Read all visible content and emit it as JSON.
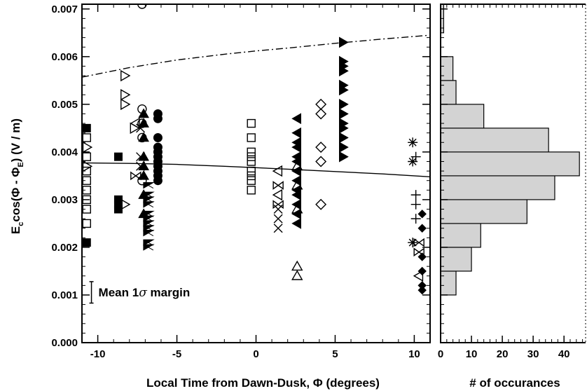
{
  "chart_data": [
    {
      "type": "scatter",
      "xlabel": "Local Time from Dawn-Dusk, Φ (degrees)",
      "ylabel_parts": [
        "E",
        "c",
        "cos(Φ - Φ",
        "E",
        ") (V / m)"
      ],
      "xlim": [
        -11,
        11
      ],
      "ylim": [
        0,
        0.0071
      ],
      "x_ticks": [
        -10,
        -5,
        0,
        5,
        10
      ],
      "x_tick_labels": [
        "-10",
        "-5",
        "0",
        "5",
        "10"
      ],
      "y_ticks": [
        0,
        0.001,
        0.002,
        0.003,
        0.004,
        0.005,
        0.006,
        0.007
      ],
      "y_tick_labels": [
        "0.000",
        "0.001",
        "0.002",
        "0.003",
        "0.004",
        "0.005",
        "0.006",
        "0.007"
      ],
      "annotation": {
        "text_prefix": "Mean 1",
        "symbol": "σ",
        "text_suffix": " margin",
        "x": -10.4,
        "y_low": 0.00083,
        "y_high": 0.00128
      },
      "lines": [
        {
          "style": "solid",
          "x": [
            -11,
            -8,
            -5,
            -2,
            0,
            2,
            5,
            8,
            11
          ],
          "y": [
            0.00377,
            0.00376,
            0.00374,
            0.0037,
            0.00367,
            0.00364,
            0.00359,
            0.00354,
            0.00348
          ]
        },
        {
          "style": "dashdot",
          "x": [
            -11,
            -8,
            -5,
            -2,
            0,
            2,
            5,
            8,
            11
          ],
          "y": [
            0.00557,
            0.00577,
            0.00593,
            0.00605,
            0.00612,
            0.00618,
            0.00628,
            0.00637,
            0.00645
          ]
        }
      ],
      "series": [
        {
          "marker": "square-open",
          "points": [
            [
              -10.7,
              0.0043
            ],
            [
              -10.7,
              0.0039
            ],
            [
              -10.7,
              0.0036
            ],
            [
              -10.7,
              0.0034
            ],
            [
              -10.7,
              0.0032
            ],
            [
              -10.7,
              0.003
            ],
            [
              -10.7,
              0.0028
            ],
            [
              -10.7,
              0.0025
            ],
            [
              -0.3,
              0.0046
            ],
            [
              -0.3,
              0.0043
            ],
            [
              -0.3,
              0.004
            ],
            [
              -0.3,
              0.0039
            ],
            [
              -0.3,
              0.0038
            ],
            [
              -0.3,
              0.0036
            ],
            [
              -0.3,
              0.0035
            ],
            [
              -0.3,
              0.0034
            ],
            [
              -0.3,
              0.0032
            ]
          ]
        },
        {
          "marker": "square-filled",
          "points": [
            [
              -10.7,
              0.0045
            ],
            [
              -10.7,
              0.0021
            ],
            [
              -8.7,
              0.0039
            ],
            [
              -8.7,
              0.003
            ],
            [
              -8.7,
              0.0029
            ],
            [
              -8.7,
              0.0028
            ]
          ]
        },
        {
          "marker": "triangle-right-open",
          "points": [
            [
              -10.7,
              0.0041
            ],
            [
              -10.7,
              0.0037
            ],
            [
              -8.3,
              0.0056
            ],
            [
              -8.3,
              0.0052
            ],
            [
              -8.3,
              0.005
            ],
            [
              -8.3,
              0.0029
            ],
            [
              -7.7,
              0.0045
            ]
          ]
        },
        {
          "marker": "triangle-left-open",
          "points": [
            [
              -7.6,
              0.0046
            ],
            [
              1.4,
              0.0036
            ],
            [
              1.4,
              0.0031
            ],
            [
              10.3,
              0.0014
            ]
          ]
        },
        {
          "marker": "circle-open",
          "points": [
            [
              -7.2,
              0.0071
            ],
            [
              -7.2,
              0.0049
            ],
            [
              -7.2,
              0.0046
            ],
            [
              -7.2,
              0.0043
            ],
            [
              -7.2,
              0.0034
            ]
          ]
        },
        {
          "marker": "circle-filled",
          "points": [
            [
              -6.2,
              0.0048
            ],
            [
              -6.2,
              0.0047
            ],
            [
              -6.2,
              0.0043
            ],
            [
              -6.2,
              0.0041
            ],
            [
              -6.2,
              0.004
            ],
            [
              -6.2,
              0.0039
            ],
            [
              -6.2,
              0.0038
            ],
            [
              -6.2,
              0.0037
            ],
            [
              -6.2,
              0.0036
            ],
            [
              -6.2,
              0.0035
            ],
            [
              -6.2,
              0.0034
            ]
          ]
        },
        {
          "marker": "x",
          "points": [
            [
              -7.3,
              0.0045
            ],
            [
              -7.3,
              0.0039
            ],
            [
              -7.3,
              0.0037
            ],
            [
              1.4,
              0.0028
            ],
            [
              1.4,
              0.0026
            ],
            [
              1.4,
              0.0024
            ]
          ]
        },
        {
          "marker": "triangle-up-filled",
          "points": [
            [
              -7.1,
              0.0048
            ],
            [
              -7.1,
              0.0046
            ],
            [
              -7.1,
              0.0043
            ],
            [
              -7.1,
              0.0039
            ],
            [
              -7.1,
              0.0037
            ],
            [
              -7.1,
              0.0035
            ],
            [
              -7.1,
              0.0031
            ],
            [
              -7.1,
              0.0027
            ]
          ]
        },
        {
          "marker": "bowtie-filled",
          "points": [
            [
              -6.8,
              0.0033
            ],
            [
              -6.8,
              0.0031
            ],
            [
              -6.8,
              0.003
            ],
            [
              -6.8,
              0.0029
            ],
            [
              -6.8,
              0.0027
            ],
            [
              -6.8,
              0.0026
            ],
            [
              -6.8,
              0.0025
            ],
            [
              -6.8,
              0.0024
            ],
            [
              -6.8,
              0.0023
            ],
            [
              -6.8,
              0.0021
            ],
            [
              -6.8,
              0.002
            ]
          ]
        },
        {
          "marker": "triangle-left-filled",
          "points": [
            [
              2.6,
              0.0047
            ],
            [
              2.6,
              0.0044
            ],
            [
              2.6,
              0.0042
            ],
            [
              2.6,
              0.0041
            ],
            [
              2.6,
              0.0039
            ],
            [
              2.6,
              0.0038
            ],
            [
              2.6,
              0.0036
            ],
            [
              2.6,
              0.0034
            ],
            [
              2.6,
              0.0032
            ],
            [
              2.6,
              0.0031
            ],
            [
              2.6,
              0.0029
            ],
            [
              2.6,
              0.0027
            ],
            [
              2.6,
              0.0025
            ]
          ]
        },
        {
          "marker": "triangle-up-open",
          "points": [
            [
              2.6,
              0.0037
            ],
            [
              2.6,
              0.0033
            ],
            [
              2.6,
              0.0028
            ],
            [
              2.6,
              0.0016
            ],
            [
              2.6,
              0.0014
            ]
          ]
        },
        {
          "marker": "diamond-open",
          "points": [
            [
              4.1,
              0.005
            ],
            [
              4.1,
              0.0048
            ],
            [
              4.1,
              0.0041
            ],
            [
              4.1,
              0.0038
            ],
            [
              4.1,
              0.0029
            ]
          ]
        },
        {
          "marker": "triangle-right-filled",
          "points": [
            [
              5.5,
              0.0063
            ],
            [
              5.5,
              0.0059
            ],
            [
              5.5,
              0.0058
            ],
            [
              5.5,
              0.0057
            ],
            [
              5.5,
              0.0054
            ],
            [
              5.5,
              0.0053
            ],
            [
              5.5,
              0.005
            ],
            [
              5.5,
              0.0048
            ],
            [
              5.5,
              0.0046
            ],
            [
              5.5,
              0.0045
            ],
            [
              5.5,
              0.0043
            ],
            [
              5.5,
              0.0041
            ],
            [
              5.5,
              0.0039
            ]
          ]
        },
        {
          "marker": "asterisk",
          "points": [
            [
              9.9,
              0.0042
            ],
            [
              9.9,
              0.0038
            ],
            [
              9.9,
              0.0021
            ]
          ]
        },
        {
          "marker": "plus",
          "points": [
            [
              10.1,
              0.0039
            ],
            [
              10.1,
              0.0031
            ],
            [
              10.1,
              0.0029
            ],
            [
              10.1,
              0.0026
            ]
          ]
        },
        {
          "marker": "diamond-filled",
          "points": [
            [
              10.5,
              0.0027
            ],
            [
              10.5,
              0.0024
            ],
            [
              10.5,
              0.0018
            ],
            [
              10.5,
              0.0015
            ],
            [
              10.5,
              0.0012
            ],
            [
              10.5,
              0.0011
            ]
          ]
        },
        {
          "marker": "bowtie-open",
          "points": [
            [
              -7.6,
              0.0035
            ],
            [
              1.4,
              0.0033
            ],
            [
              1.4,
              0.0029
            ],
            [
              10.3,
              0.0021
            ],
            [
              10.3,
              0.0019
            ]
          ]
        }
      ]
    },
    {
      "type": "histogram",
      "orientation": "horizontal",
      "xlabel": "# of occurances",
      "xlim": [
        0,
        47
      ],
      "ylim": [
        0,
        0.0071
      ],
      "x_ticks": [
        0,
        10,
        20,
        30,
        40
      ],
      "x_tick_labels": [
        "0",
        "10",
        "20",
        "30",
        "40"
      ],
      "bar_color": "#d3d3d3",
      "bins": [
        {
          "y0": 0.001,
          "y1": 0.0015,
          "count": 5
        },
        {
          "y0": 0.0015,
          "y1": 0.002,
          "count": 10
        },
        {
          "y0": 0.002,
          "y1": 0.0025,
          "count": 13
        },
        {
          "y0": 0.0025,
          "y1": 0.003,
          "count": 28
        },
        {
          "y0": 0.003,
          "y1": 0.0035,
          "count": 37
        },
        {
          "y0": 0.0035,
          "y1": 0.004,
          "count": 45
        },
        {
          "y0": 0.004,
          "y1": 0.0045,
          "count": 35
        },
        {
          "y0": 0.0045,
          "y1": 0.005,
          "count": 14
        },
        {
          "y0": 0.005,
          "y1": 0.0055,
          "count": 5
        },
        {
          "y0": 0.0055,
          "y1": 0.006,
          "count": 4
        },
        {
          "y0": 0.0065,
          "y1": 0.0071,
          "count": 1
        }
      ]
    }
  ]
}
